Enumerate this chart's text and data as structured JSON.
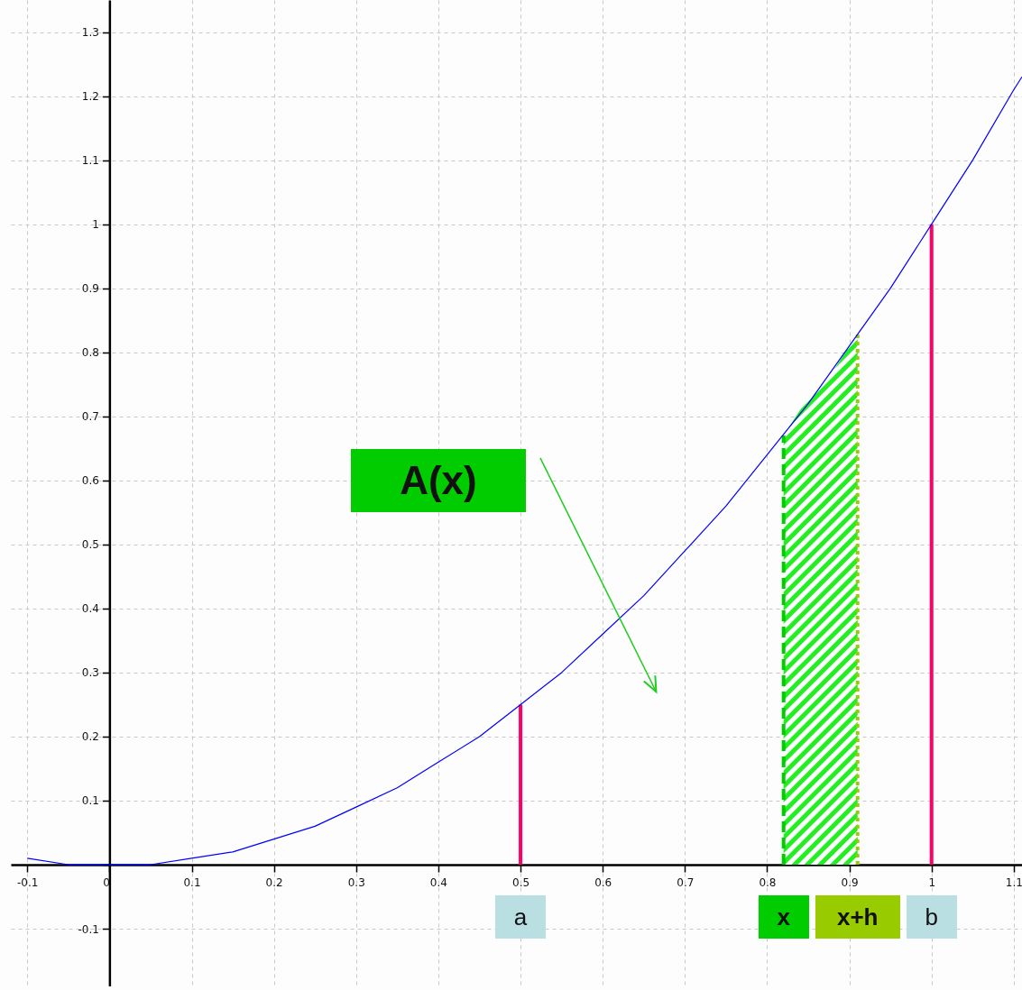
{
  "chart_data": {
    "type": "line",
    "xlim": [
      -0.12,
      1.11
    ],
    "ylim": [
      -0.19,
      1.35
    ],
    "xticks": [
      -0.1,
      0,
      0.1,
      0.2,
      0.3,
      0.4,
      0.5,
      0.6,
      0.7,
      0.8,
      0.9,
      1,
      1.1
    ],
    "yticks": [
      -0.1,
      {
        "value": 0,
        "label": null
      },
      0.1,
      0.2,
      0.3,
      0.4,
      0.5,
      0.6,
      0.7,
      0.8,
      0.9,
      1,
      1.1,
      1.2,
      1.3
    ],
    "grid": true,
    "series": [
      {
        "type": "line",
        "color": "#0000ff",
        "x": [
          -0.1,
          -0.05,
          0.05,
          0.1,
          0.15,
          0.2,
          0.25,
          0.3,
          0.35,
          0.4,
          0.45,
          0.5,
          0.55,
          0.6,
          0.65,
          0.7,
          0.75,
          0.8,
          0.85,
          0.9,
          0.95,
          1,
          1.05,
          1.1,
          1.11
        ],
        "values": [
          0.01,
          0,
          0,
          0.01,
          0.02,
          0.04,
          0.06,
          0.09,
          0.12,
          0.16,
          0.2,
          0.25,
          0.3,
          0.36,
          0.42,
          0.49,
          0.56,
          0.64,
          0.72,
          0.81,
          0.9,
          1,
          1.1,
          1.21,
          1.23
        ]
      },
      {
        "type": "area",
        "color": "#22ee22",
        "x": [
          0.82,
          0.84,
          0.86,
          0.88,
          0.9,
          0.91
        ],
        "values": [
          0.67,
          0.71,
          0.74,
          0.77,
          0.81,
          0.83
        ]
      },
      {
        "type": "line",
        "color": "#ff0066",
        "x": [
          0.5,
          0.5
        ],
        "values": [
          0,
          0.25
        ]
      },
      {
        "type": "line",
        "color": "#ff0066",
        "x": [
          1,
          1
        ],
        "values": [
          0,
          1
        ]
      },
      {
        "type": "line",
        "color": "#00cc00",
        "line_style": "dashed",
        "x": [
          0.82,
          0.82
        ],
        "values": [
          0,
          0.67
        ]
      },
      {
        "type": "line",
        "color": "#99cc00",
        "line_style": "dotted",
        "x": [
          0.91,
          0.91
        ],
        "values": [
          0,
          0.83
        ]
      }
    ],
    "annotations": [
      {
        "text": "a",
        "x": 0.5,
        "y": 0
      },
      {
        "text": "x",
        "x": 0.82,
        "y": 0
      },
      {
        "text": "x+h",
        "x": 0.91,
        "y": 0
      },
      {
        "text": "b",
        "x": 1,
        "y": 0
      },
      "A(x)"
    ]
  }
}
